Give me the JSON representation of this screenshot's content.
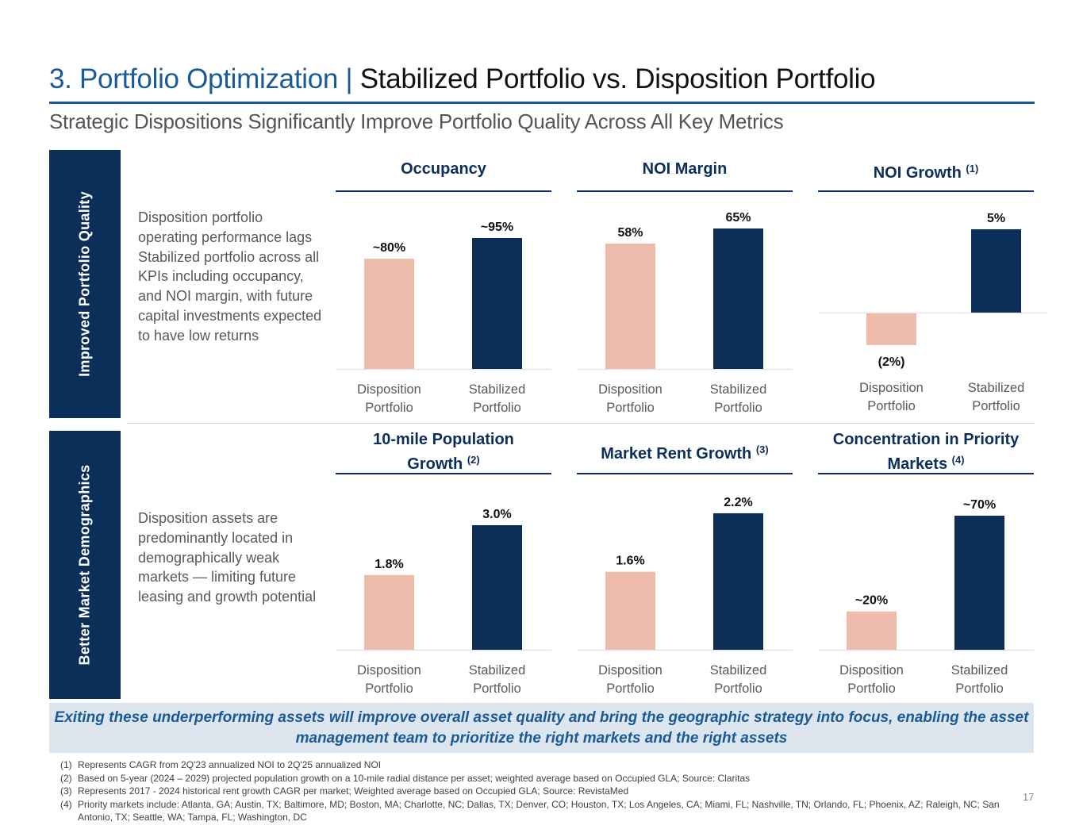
{
  "header": {
    "title_section": "3. Portfolio Optimization |",
    "title_main": "Stabilized Portfolio vs. Disposition Portfolio",
    "subtitle": "Strategic Dispositions Significantly Improve Portfolio Quality Across All Key Metrics"
  },
  "rows": [
    {
      "band_label": "Improved Portfolio Quality",
      "description": "Disposition portfolio operating performance lags Stabilized portfolio across all KPIs including occupancy, and NOI margin, with future capital investments expected to have low returns"
    },
    {
      "band_label": "Better Market Demographics",
      "description": "Disposition assets are predominantly located in demographically weak markets — limiting future leasing and growth potential"
    }
  ],
  "colors": {
    "disposition": "#efbbaa",
    "stabilized": "#0c2f5a",
    "title_blue": "#1a5a96",
    "navy": "#0c2f5a",
    "banner_bg": "#dde6ef"
  },
  "chart_data": [
    {
      "type": "bar",
      "title": "Occupancy",
      "footnote_ref": "",
      "categories": [
        "Disposition Portfolio",
        "Stabilized Portfolio"
      ],
      "values": [
        80,
        95
      ],
      "labels": [
        "~80%",
        "~95%"
      ],
      "unit": "%",
      "xlabel": "",
      "ylabel": "",
      "ylim": [
        0,
        100
      ],
      "grid": false
    },
    {
      "type": "bar",
      "title": "NOI Margin",
      "footnote_ref": "",
      "categories": [
        "Disposition Portfolio",
        "Stabilized Portfolio"
      ],
      "values": [
        58,
        65
      ],
      "labels": [
        "58%",
        "65%"
      ],
      "unit": "%",
      "xlabel": "",
      "ylabel": "",
      "ylim": [
        0,
        70
      ],
      "grid": false
    },
    {
      "type": "bar",
      "title": "NOI Growth",
      "footnote_ref": "(1)",
      "categories": [
        "Disposition Portfolio",
        "Stabilized Portfolio"
      ],
      "values": [
        -2,
        5
      ],
      "labels": [
        "(2%)",
        "5%"
      ],
      "unit": "%",
      "xlabel": "",
      "ylabel": "",
      "ylim": [
        -3,
        6
      ],
      "grid": false
    },
    {
      "type": "bar",
      "title": "10-mile Population Growth",
      "footnote_ref": "(2)",
      "categories": [
        "Disposition Portfolio",
        "Stabilized Portfolio"
      ],
      "values": [
        1.8,
        3.0
      ],
      "labels": [
        "1.8%",
        "3.0%"
      ],
      "unit": "%",
      "xlabel": "",
      "ylabel": "",
      "ylim": [
        0,
        3.2
      ],
      "grid": false
    },
    {
      "type": "bar",
      "title": "Market Rent Growth",
      "footnote_ref": "(3)",
      "categories": [
        "Disposition Portfolio",
        "Stabilized Portfolio"
      ],
      "values": [
        1.6,
        2.2
      ],
      "labels": [
        "1.6%",
        "2.2%"
      ],
      "unit": "%",
      "xlabel": "",
      "ylabel": "",
      "ylim": [
        0.8,
        2.3
      ],
      "grid": false
    },
    {
      "type": "bar",
      "title": "Concentration in Priority Markets",
      "footnote_ref": "(4)",
      "categories": [
        "Disposition Portfolio",
        "Stabilized Portfolio"
      ],
      "values": [
        20,
        70
      ],
      "labels": [
        "~20%",
        "~70%"
      ],
      "unit": "%",
      "xlabel": "",
      "ylabel": "",
      "ylim": [
        0,
        72
      ],
      "grid": false
    }
  ],
  "banner": {
    "text": "Exiting these underperforming assets will improve overall asset quality and bring the geographic strategy into focus, enabling the asset management team to prioritize the right markets and the right assets"
  },
  "footnotes": [
    {
      "num": "(1)",
      "text": "Represents CAGR from 2Q'23 annualized NOI to 2Q'25 annualized NOI"
    },
    {
      "num": "(2)",
      "text": "Based on 5-year (2024 – 2029) projected population growth on a 10-mile radial distance per asset; weighted average based on Occupied GLA; Source: Claritas"
    },
    {
      "num": "(3)",
      "text": "Represents 2017 - 2024 historical rent growth CAGR per market; Weighted average based on Occupied GLA; Source: RevistaMed"
    },
    {
      "num": "(4)",
      "text": "Priority markets include: Atlanta, GA; Austin, TX; Baltimore, MD; Boston, MA; Charlotte, NC; Dallas, TX; Denver, CO; Houston, TX; Los Angeles, CA; Miami, FL; Nashville, TN; Orlando, FL; Phoenix, AZ; Raleigh, NC; San Antonio, TX; Seattle, WA; Tampa, FL; Washington, DC"
    }
  ],
  "page_number": "17"
}
